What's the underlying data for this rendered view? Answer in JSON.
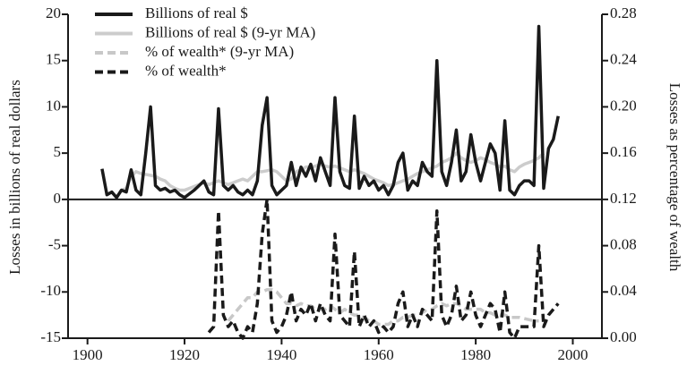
{
  "chart_data": {
    "type": "line",
    "xlabel": null,
    "ylabel": "Losses in billions of real dollars",
    "y2label": "Losses as percentage of wealth",
    "x": [
      1903,
      1904,
      1905,
      1906,
      1907,
      1908,
      1909,
      1910,
      1911,
      1912,
      1913,
      1914,
      1915,
      1916,
      1917,
      1918,
      1919,
      1920,
      1921,
      1922,
      1923,
      1924,
      1925,
      1926,
      1927,
      1928,
      1929,
      1930,
      1931,
      1932,
      1933,
      1934,
      1935,
      1936,
      1937,
      1938,
      1939,
      1940,
      1941,
      1942,
      1943,
      1944,
      1945,
      1946,
      1947,
      1948,
      1949,
      1950,
      1951,
      1952,
      1953,
      1954,
      1955,
      1956,
      1957,
      1958,
      1959,
      1960,
      1961,
      1962,
      1963,
      1964,
      1965,
      1966,
      1967,
      1968,
      1969,
      1970,
      1971,
      1972,
      1973,
      1974,
      1975,
      1976,
      1977,
      1978,
      1979,
      1980,
      1981,
      1982,
      1983,
      1984,
      1985,
      1986,
      1987,
      1988,
      1989,
      1990,
      1991,
      1992,
      1993,
      1994,
      1995,
      1996,
      1997
    ],
    "series": [
      {
        "name": "Billions of real $",
        "color": "#1a1a1a",
        "dash": false,
        "axis": "y",
        "values": [
          3.3,
          0.5,
          0.8,
          0.2,
          1.0,
          0.8,
          3.2,
          1.0,
          0.5,
          5,
          10,
          1.5,
          1.0,
          1.2,
          0.8,
          1.0,
          0.5,
          0.2,
          0.6,
          1.0,
          1.5,
          2.0,
          0.8,
          0.5,
          9.8,
          1.5,
          1.0,
          1.5,
          0.8,
          0.5,
          1.0,
          0.5,
          2.0,
          8,
          11,
          1.5,
          0.5,
          1.0,
          1.5,
          4.0,
          1.5,
          3.5,
          2.5,
          3.8,
          2.0,
          4.5,
          3,
          1.5,
          11,
          3,
          1.5,
          1.2,
          9,
          1.2,
          2.5,
          1.5,
          2.0,
          1.0,
          1.5,
          0.5,
          1.5,
          4,
          5,
          1.0,
          2,
          1.5,
          4,
          3,
          2.5,
          15,
          3,
          1.5,
          4,
          7.5,
          2,
          3,
          7,
          4,
          2,
          4,
          6,
          5,
          1,
          8.5,
          1,
          0.5,
          1.5,
          2,
          2,
          1.5,
          18.7,
          1.2,
          5.5,
          6.5,
          9
        ]
      },
      {
        "name": "Billions of real $ (9-yr MA)",
        "color": "#cccccc",
        "dash": false,
        "axis": "y",
        "values": [
          null,
          null,
          null,
          null,
          1.0,
          1.2,
          2.5,
          3.0,
          2.8,
          2.7,
          2.6,
          2.5,
          2.2,
          2.0,
          1.5,
          1.2,
          1.0,
          1.0,
          1.2,
          1.4,
          1.6,
          1.8,
          1.6,
          1.8,
          2.0,
          1.8,
          1.6,
          1.8,
          2.0,
          2.2,
          2.0,
          2.5,
          3.0,
          3.0,
          3.1,
          3.2,
          3.0,
          2.5,
          2.0,
          2.2,
          3.0,
          3.2,
          3.5,
          3.5,
          3.6,
          3.8,
          3.6,
          3.5,
          3.6,
          3.4,
          3.2,
          3.0,
          3.2,
          3.0,
          2.8,
          2.5,
          2.2,
          2.0,
          1.8,
          1.5,
          1.6,
          1.8,
          2.0,
          2.2,
          2.5,
          2.8,
          3.0,
          3.2,
          3.4,
          3.6,
          4.0,
          4.2,
          4.5,
          5.0,
          4.5,
          4.2,
          4.0,
          4.2,
          4.5,
          4.3,
          4.0,
          3.8,
          3.5,
          3.6,
          3.2,
          3.0,
          3.5,
          3.8,
          4.0,
          4.2,
          4.5,
          5.0,
          null,
          null,
          null
        ]
      },
      {
        "name": "% of wealth* (9-yr MA)",
        "color": "#c8c8c8",
        "dash": true,
        "axis": "y2",
        "values": [
          null,
          null,
          null,
          null,
          null,
          null,
          null,
          null,
          null,
          null,
          null,
          null,
          null,
          null,
          null,
          null,
          null,
          null,
          null,
          null,
          null,
          null,
          null,
          null,
          null,
          null,
          0.015,
          0.02,
          0.025,
          0.03,
          0.035,
          0.035,
          0.04,
          0.04,
          0.042,
          0.042,
          0.04,
          0.035,
          0.03,
          0.03,
          0.028,
          0.03,
          0.028,
          0.028,
          0.025,
          0.025,
          0.025,
          0.028,
          0.025,
          0.022,
          0.025,
          0.022,
          0.02,
          0.02,
          0.018,
          0.015,
          0.015,
          0.012,
          0.012,
          0.012,
          0.015,
          0.015,
          0.018,
          0.018,
          0.02,
          0.02,
          0.022,
          0.025,
          0.025,
          0.028,
          0.03,
          0.028,
          0.03,
          0.03,
          0.028,
          0.025,
          0.025,
          0.025,
          0.025,
          0.022,
          0.022,
          0.02,
          0.02,
          0.02,
          0.018,
          0.018,
          0.018,
          0.017,
          0.016,
          0.015,
          0.015,
          null,
          null,
          null,
          null
        ]
      },
      {
        "name": "% of wealth*",
        "color": "#1a1a1a",
        "dash": true,
        "axis": "y2",
        "values": [
          null,
          null,
          null,
          null,
          null,
          null,
          null,
          null,
          null,
          null,
          null,
          null,
          null,
          null,
          null,
          null,
          null,
          null,
          null,
          null,
          null,
          null,
          0.005,
          0.01,
          0.11,
          0.02,
          0.01,
          0.015,
          0.005,
          0.0,
          0.01,
          0.005,
          0.03,
          0.09,
          0.12,
          0.015,
          0.005,
          0.01,
          0.02,
          0.04,
          0.015,
          0.025,
          0.02,
          0.03,
          0.015,
          0.03,
          0.02,
          0.015,
          0.09,
          0.02,
          0.015,
          0.01,
          0.075,
          0.01,
          0.02,
          0.01,
          0.015,
          0.005,
          0.01,
          0.005,
          0.01,
          0.03,
          0.04,
          0.01,
          0.02,
          0.01,
          0.025,
          0.02,
          0.015,
          0.11,
          0.02,
          0.01,
          0.02,
          0.045,
          0.015,
          0.02,
          0.04,
          0.02,
          0.01,
          0.02,
          0.03,
          0.025,
          0.005,
          0.04,
          0.005,
          0,
          0.01,
          0.01,
          0.01,
          0.01,
          0.08,
          0.01,
          0.02,
          0.025,
          0.03
        ]
      }
    ],
    "xlim": [
      1896,
      2006
    ],
    "xticks": [
      1900,
      1920,
      1940,
      1960,
      1980,
      2000
    ],
    "ylim": [
      -15,
      20
    ],
    "yticks": [
      -15,
      -10,
      -5,
      0,
      5,
      10,
      15,
      20
    ],
    "y2lim": [
      0,
      0.28
    ],
    "y2ticks": [
      {
        "value": 0,
        "label": "0.00"
      },
      0.04,
      0.08,
      0.12,
      0.16,
      {
        "value": 0.2,
        "label": "0.20"
      },
      0.24,
      0.28
    ],
    "legend": "upper left"
  }
}
